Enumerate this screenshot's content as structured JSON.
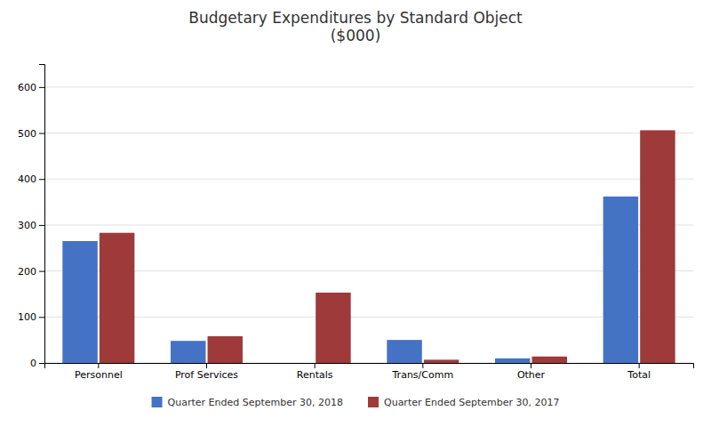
{
  "chart_data": {
    "type": "bar",
    "title": "Budgetary Expenditures by Standard Object\n($000)",
    "categories": [
      "Personnel",
      "Prof Services",
      "Rentals",
      "Trans/Comm",
      "Other",
      "Total"
    ],
    "series": [
      {
        "name": "Quarter Ended September 30, 2018",
        "color": "#4472C4",
        "values": [
          265,
          48,
          0,
          50,
          10,
          362
        ]
      },
      {
        "name": "Quarter Ended September 30, 2017",
        "color": "#9E3A3A",
        "values": [
          283,
          58,
          153,
          7,
          14,
          506
        ]
      }
    ],
    "ylim": [
      0,
      650
    ],
    "yticks": [
      0,
      100,
      200,
      300,
      400,
      500,
      600
    ],
    "grid": true,
    "legend": "bottom"
  }
}
